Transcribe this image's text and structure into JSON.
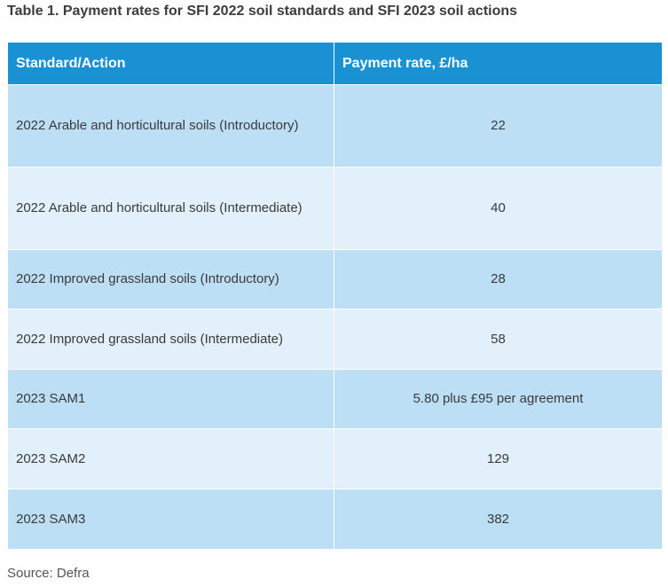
{
  "title": "Table 1. Payment rates for SFI 2022 soil standards and SFI 2023 soil actions",
  "table": {
    "headers": [
      "Standard/Action",
      "Payment rate, £/ha"
    ],
    "rows": [
      {
        "action": "2022 Arable and horticultural soils (Introductory)",
        "rate": "22"
      },
      {
        "action": "2022 Arable and horticultural soils (Intermediate)",
        "rate": "40"
      },
      {
        "action": "2022 Improved grassland soils (Introductory)",
        "rate": "28"
      },
      {
        "action": "2022 Improved grassland soils (Intermediate)",
        "rate": "58"
      },
      {
        "action": "2023 SAM1",
        "rate": "5.80 plus £95 per agreement"
      },
      {
        "action": "2023 SAM2",
        "rate": "129"
      },
      {
        "action": "2023 SAM3",
        "rate": "382"
      }
    ]
  },
  "source": "Source: Defra",
  "colors": {
    "header_bg": "#1a91d3",
    "row_odd_bg": "#bddff5",
    "row_even_bg": "#e1f0fb"
  }
}
